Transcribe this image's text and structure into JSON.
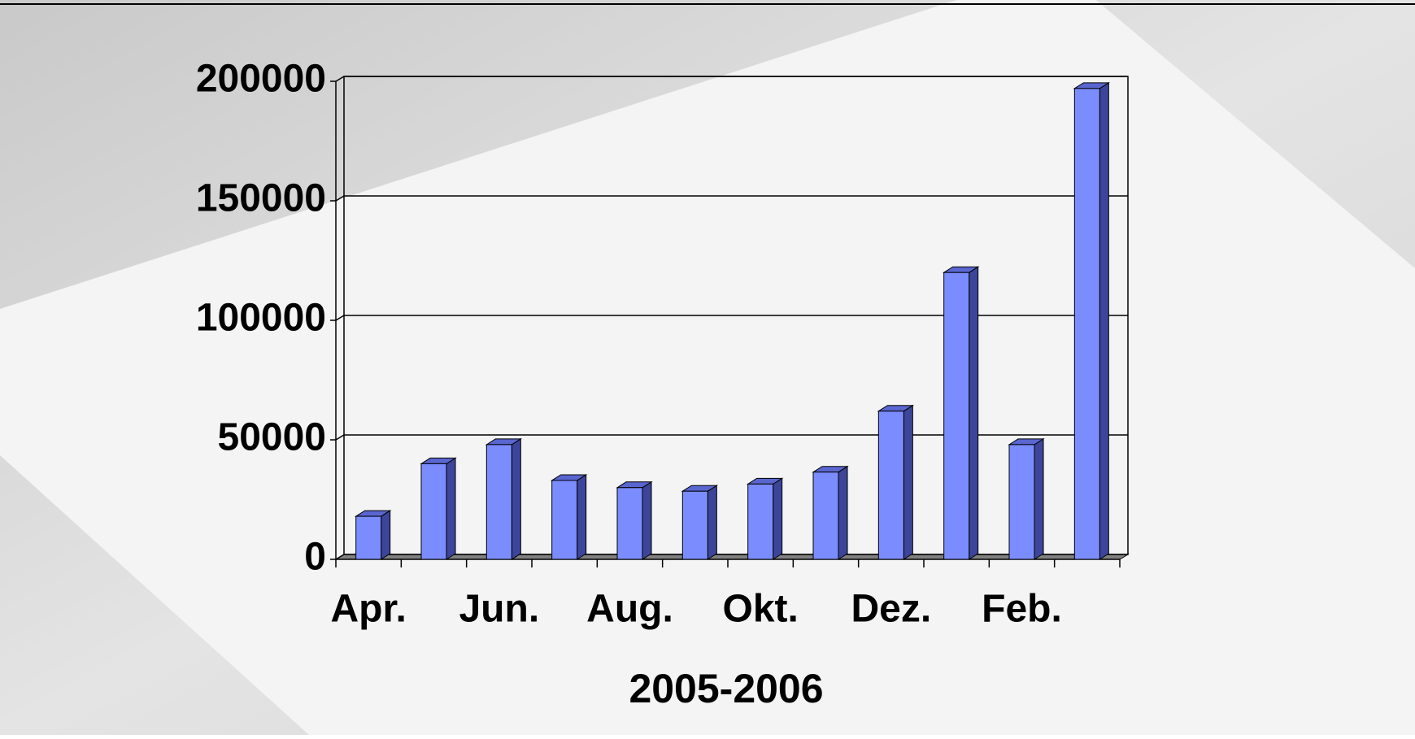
{
  "chart_data": {
    "type": "bar",
    "x_label": "2005-2006",
    "categories": [
      "Apr.",
      null,
      "Jun.",
      null,
      "Aug.",
      null,
      "Okt.",
      null,
      "Dez.",
      null,
      "Feb.",
      null
    ],
    "values": [
      18000,
      40000,
      48000,
      33000,
      30000,
      28500,
      31500,
      36500,
      62000,
      120000,
      48000,
      197000
    ],
    "color": "#7b8cff",
    "ylim": [
      0,
      200000
    ],
    "yticks": [
      0,
      50000,
      100000,
      150000,
      200000
    ],
    "grid": true
  }
}
